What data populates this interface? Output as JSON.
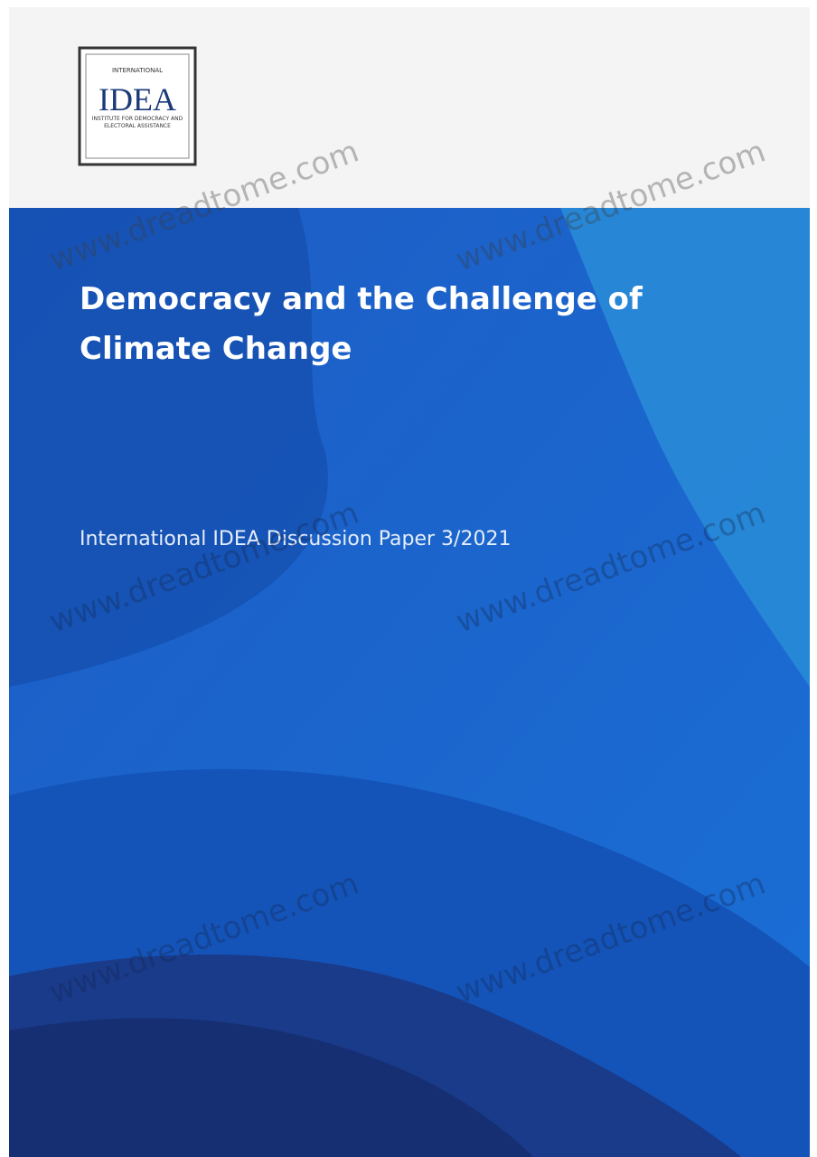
{
  "logo": {
    "top": "INTERNATIONAL",
    "name": "IDEA",
    "bottom": "INSTITUTE FOR DEMOCRACY AND ELECTORAL ASSISTANCE"
  },
  "title_lines": [
    "Democracy and the Challenge of",
    "Climate Change"
  ],
  "subtitle": "International IDEA Discussion Paper 3/2021",
  "watermark": "www.dreadtome.com"
}
